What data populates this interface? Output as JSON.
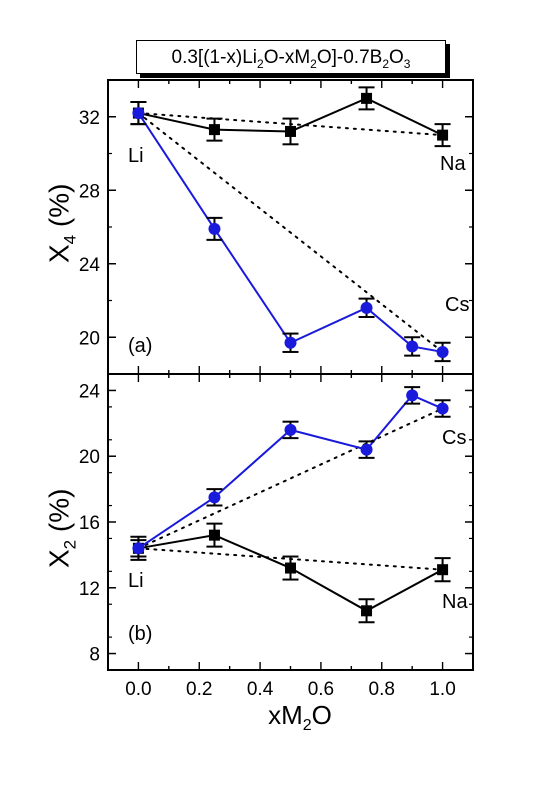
{
  "title": {
    "parts": [
      "0.3[(1-x)Li",
      "2",
      "O-xM",
      "2",
      "O]-0.7B",
      "2",
      "O",
      "3"
    ]
  },
  "xaxis": {
    "label_main": "xM",
    "label_sub": "2",
    "label_tail": "O",
    "ticks": [
      "0.0",
      "0.2",
      "0.4",
      "0.6",
      "0.8",
      "1.0"
    ],
    "range": [
      -0.1,
      1.1
    ]
  },
  "colors": {
    "na_series": "#000000",
    "cs_series": "#1a1adc",
    "frame": "#000000"
  },
  "chart_data": [
    {
      "panel_tag": "(a)",
      "type": "line",
      "ylabel_main": "X",
      "ylabel_sub": "4",
      "ylabel_tail": " (%)",
      "ylim": [
        18,
        34
      ],
      "yticks": [
        "20",
        "24",
        "28",
        "32"
      ],
      "annotations": {
        "start": "Li",
        "end_top": "Na",
        "end_bottom": "Cs"
      },
      "series": [
        {
          "key": "Na",
          "marker": "square",
          "x": [
            0,
            0.25,
            0.5,
            0.75,
            1.0
          ],
          "y": [
            32.2,
            31.3,
            31.2,
            33.0,
            31.0
          ],
          "err": [
            0.6,
            0.6,
            0.7,
            0.6,
            0.6
          ]
        },
        {
          "key": "Cs",
          "marker": "circle",
          "x": [
            0,
            0.25,
            0.5,
            0.75,
            0.9,
            1.0
          ],
          "y": [
            32.2,
            25.9,
            19.7,
            21.6,
            19.5,
            19.2
          ],
          "err": [
            0.6,
            0.6,
            0.5,
            0.5,
            0.5,
            0.5
          ]
        }
      ],
      "reference_lines": [
        {
          "key": "Na",
          "x": [
            0,
            1.0
          ],
          "y": [
            32.2,
            31.0
          ]
        },
        {
          "key": "Cs",
          "x": [
            0,
            1.0
          ],
          "y": [
            32.2,
            19.2
          ]
        }
      ]
    },
    {
      "panel_tag": "(b)",
      "type": "line",
      "ylabel_main": "X",
      "ylabel_sub": "2",
      "ylabel_tail": " (%)",
      "ylim": [
        7,
        25
      ],
      "yticks": [
        "8",
        "12",
        "16",
        "20",
        "24"
      ],
      "annotations": {
        "start": "Li",
        "end_top": "Cs",
        "end_bottom": "Na"
      },
      "series": [
        {
          "key": "Na",
          "marker": "square",
          "x": [
            0,
            0.25,
            0.5,
            0.75,
            1.0
          ],
          "y": [
            14.4,
            15.2,
            13.2,
            10.6,
            13.1
          ],
          "err": [
            0.7,
            0.7,
            0.7,
            0.7,
            0.7
          ]
        },
        {
          "key": "Cs",
          "marker": "circle",
          "x": [
            0,
            0.25,
            0.5,
            0.75,
            0.9,
            1.0
          ],
          "y": [
            14.4,
            17.5,
            21.6,
            20.4,
            23.7,
            22.9
          ],
          "err": [
            0.5,
            0.5,
            0.5,
            0.5,
            0.5,
            0.5
          ]
        }
      ],
      "reference_lines": [
        {
          "key": "Na",
          "x": [
            0,
            1.0
          ],
          "y": [
            14.4,
            13.1
          ]
        },
        {
          "key": "Cs",
          "x": [
            0,
            1.0
          ],
          "y": [
            14.4,
            22.9
          ]
        }
      ]
    }
  ]
}
